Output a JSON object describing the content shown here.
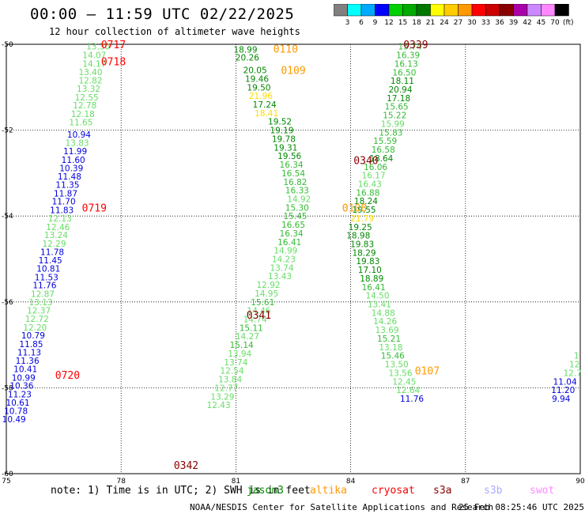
{
  "header": {
    "title": "00:00 – 11:59 UTC 02/22/2025",
    "subtitle": "12 hour collection of altimeter wave heights"
  },
  "colorbar": {
    "unit": "(ft)",
    "ticks": [
      "3",
      "6",
      "9",
      "12",
      "15",
      "18",
      "21",
      "24",
      "27",
      "30",
      "33",
      "36",
      "39",
      "42",
      "45",
      "70"
    ],
    "colors": [
      "#808080",
      "#00ffff",
      "#00aaff",
      "#0000ff",
      "#00d000",
      "#00aa00",
      "#007700",
      "#ffff00",
      "#ffcc00",
      "#ff9900",
      "#ff0000",
      "#cc0000",
      "#880000",
      "#aa00aa",
      "#cc88ff",
      "#ff88ff",
      "#000000"
    ]
  },
  "footer": {
    "note": "note: 1) Time is in UTC; 2) SWH is in feet",
    "satellites": [
      {
        "label": "jason3",
        "color": "#008800"
      },
      {
        "label": "altika",
        "color": "#ff9900"
      },
      {
        "label": "cryosat",
        "color": "#ff0000"
      },
      {
        "label": "s3a",
        "color": "#880000"
      },
      {
        "label": "s3b",
        "color": "#aaaaff"
      },
      {
        "label": "swot",
        "color": "#ff88ff"
      }
    ],
    "credit": "NOAA/NESDIS Center for Satellite Applications and Research",
    "timestamp": "25 Feb 08:25:46 UTC 2025"
  },
  "chart_data": {
    "type": "scatter",
    "title": "00:00 – 11:59 UTC 02/22/2025",
    "xlabel": "",
    "ylabel": "",
    "xlim": [
      75,
      90
    ],
    "ylim": [
      -60,
      -50
    ],
    "xticks": [
      "75",
      "78",
      "81",
      "84",
      "87",
      "90"
    ],
    "yticks": [
      "-50",
      "-52",
      "-54",
      "-56",
      "-58",
      "-60"
    ],
    "grid": true,
    "tracks": [
      {
        "x": 77.8,
        "y": -50.0,
        "label": "0717",
        "color": "#ff0000"
      },
      {
        "x": 77.8,
        "y": -50.4,
        "label": "0718",
        "color": "#ff0000"
      },
      {
        "x": 77.3,
        "y": -53.8,
        "label": "0719",
        "color": "#ff0000"
      },
      {
        "x": 76.6,
        "y": -57.7,
        "label": "0720",
        "color": "#ff0000"
      },
      {
        "x": 82.3,
        "y": -50.1,
        "label": "0110",
        "color": "#ff9900"
      },
      {
        "x": 82.5,
        "y": -50.6,
        "label": "0109",
        "color": "#ff9900"
      },
      {
        "x": 84.1,
        "y": -53.8,
        "label": "0108",
        "color": "#ff9900"
      },
      {
        "x": 86.0,
        "y": -57.6,
        "label": "0107",
        "color": "#ff9900"
      },
      {
        "x": 85.7,
        "y": -50.0,
        "label": "0339",
        "color": "#880000"
      },
      {
        "x": 84.4,
        "y": -52.7,
        "label": "0340",
        "color": "#880000"
      },
      {
        "x": 81.6,
        "y": -56.3,
        "label": "0341",
        "color": "#880000"
      },
      {
        "x": 79.7,
        "y": -59.8,
        "label": "0342",
        "color": "#880000"
      }
    ],
    "points": [
      {
        "x": 77.4,
        "y": -50.05,
        "v": "13.30",
        "c": "#66dd66"
      },
      {
        "x": 77.3,
        "y": -50.25,
        "v": "14.07",
        "c": "#66dd66"
      },
      {
        "x": 77.3,
        "y": -50.45,
        "v": "14.17",
        "c": "#66dd66"
      },
      {
        "x": 77.2,
        "y": -50.64,
        "v": "13.40",
        "c": "#66dd66"
      },
      {
        "x": 77.2,
        "y": -50.84,
        "v": "12.82",
        "c": "#66dd66"
      },
      {
        "x": 77.15,
        "y": -51.03,
        "v": "13.32",
        "c": "#66dd66"
      },
      {
        "x": 77.1,
        "y": -51.23,
        "v": "12.55",
        "c": "#66dd66"
      },
      {
        "x": 77.05,
        "y": -51.42,
        "v": "12.78",
        "c": "#66dd66"
      },
      {
        "x": 77.0,
        "y": -51.62,
        "v": "12.18",
        "c": "#66dd66"
      },
      {
        "x": 76.95,
        "y": -51.81,
        "v": "11.65",
        "c": "#66dd66"
      },
      {
        "x": 76.9,
        "y": -52.1,
        "v": "10.94",
        "c": "#0000dd"
      },
      {
        "x": 76.85,
        "y": -52.29,
        "v": "13.83",
        "c": "#66dd66"
      },
      {
        "x": 76.8,
        "y": -52.49,
        "v": "11.99",
        "c": "#0000dd"
      },
      {
        "x": 76.75,
        "y": -52.69,
        "v": "11.60",
        "c": "#0000dd"
      },
      {
        "x": 76.7,
        "y": -52.88,
        "v": "10.39",
        "c": "#0000dd"
      },
      {
        "x": 76.65,
        "y": -53.08,
        "v": "11.48",
        "c": "#0000dd"
      },
      {
        "x": 76.6,
        "y": -53.27,
        "v": "11.35",
        "c": "#0000dd"
      },
      {
        "x": 76.55,
        "y": -53.47,
        "v": "11.87",
        "c": "#0000dd"
      },
      {
        "x": 76.5,
        "y": -53.66,
        "v": "11.70",
        "c": "#0000dd"
      },
      {
        "x": 76.45,
        "y": -53.86,
        "v": "11.83",
        "c": "#0000dd"
      },
      {
        "x": 76.4,
        "y": -54.05,
        "v": "12.13",
        "c": "#66dd66"
      },
      {
        "x": 76.35,
        "y": -54.25,
        "v": "12.46",
        "c": "#66dd66"
      },
      {
        "x": 76.3,
        "y": -54.44,
        "v": "13.24",
        "c": "#66dd66"
      },
      {
        "x": 76.25,
        "y": -54.64,
        "v": "12.29",
        "c": "#66dd66"
      },
      {
        "x": 76.2,
        "y": -54.83,
        "v": "11.78",
        "c": "#0000dd"
      },
      {
        "x": 76.15,
        "y": -55.03,
        "v": "11.45",
        "c": "#0000dd"
      },
      {
        "x": 76.1,
        "y": -55.22,
        "v": "10.81",
        "c": "#0000dd"
      },
      {
        "x": 76.05,
        "y": -55.42,
        "v": "11.53",
        "c": "#0000dd"
      },
      {
        "x": 76.0,
        "y": -55.61,
        "v": "11.76",
        "c": "#0000dd"
      },
      {
        "x": 75.95,
        "y": -55.81,
        "v": "12.87",
        "c": "#66dd66"
      },
      {
        "x": 75.9,
        "y": -56.0,
        "v": "13.13",
        "c": "#66dd66"
      },
      {
        "x": 75.85,
        "y": -56.2,
        "v": "12.37",
        "c": "#66dd66"
      },
      {
        "x": 75.8,
        "y": -56.39,
        "v": "12.72",
        "c": "#66dd66"
      },
      {
        "x": 75.75,
        "y": -56.59,
        "v": "12.20",
        "c": "#66dd66"
      },
      {
        "x": 75.7,
        "y": -56.78,
        "v": "10.79",
        "c": "#0000dd"
      },
      {
        "x": 75.65,
        "y": -56.98,
        "v": "11.85",
        "c": "#0000dd"
      },
      {
        "x": 75.6,
        "y": -57.17,
        "v": "11.13",
        "c": "#0000dd"
      },
      {
        "x": 75.55,
        "y": -57.37,
        "v": "11.36",
        "c": "#0000dd"
      },
      {
        "x": 75.5,
        "y": -57.56,
        "v": "10.41",
        "c": "#0000dd"
      },
      {
        "x": 75.45,
        "y": -57.76,
        "v": "10.99",
        "c": "#0000dd"
      },
      {
        "x": 75.4,
        "y": -57.95,
        "v": "10.36",
        "c": "#0000dd"
      },
      {
        "x": 75.35,
        "y": -58.15,
        "v": "11.23",
        "c": "#0000dd"
      },
      {
        "x": 75.3,
        "y": -58.34,
        "v": "10.61",
        "c": "#0000dd"
      },
      {
        "x": 75.25,
        "y": -58.54,
        "v": "10.78",
        "c": "#0000dd"
      },
      {
        "x": 75.2,
        "y": -58.73,
        "v": "10.49",
        "c": "#0000dd"
      },
      {
        "x": 81.25,
        "y": -50.12,
        "v": "18.99",
        "c": "#008800"
      },
      {
        "x": 81.3,
        "y": -50.3,
        "v": "20.26",
        "c": "#008800"
      },
      {
        "x": 81.5,
        "y": -50.6,
        "v": "20.05",
        "c": "#008800"
      },
      {
        "x": 81.55,
        "y": -50.8,
        "v": "19.46",
        "c": "#008800"
      },
      {
        "x": 81.6,
        "y": -51.0,
        "v": "19.50",
        "c": "#008800"
      },
      {
        "x": 81.65,
        "y": -51.2,
        "v": "21.96",
        "c": "#ffdd00"
      },
      {
        "x": 81.75,
        "y": -51.4,
        "v": "17.24",
        "c": "#008800"
      },
      {
        "x": 81.8,
        "y": -51.6,
        "v": "18.41",
        "c": "#ffdd00"
      },
      {
        "x": 82.15,
        "y": -51.8,
        "v": "19.52",
        "c": "#008800"
      },
      {
        "x": 82.2,
        "y": -52.0,
        "v": "19.19",
        "c": "#008800"
      },
      {
        "x": 82.25,
        "y": -52.2,
        "v": "19.78",
        "c": "#008800"
      },
      {
        "x": 82.3,
        "y": -52.4,
        "v": "19.31",
        "c": "#008800"
      },
      {
        "x": 82.4,
        "y": -52.6,
        "v": "19.56",
        "c": "#008800"
      },
      {
        "x": 82.45,
        "y": -52.8,
        "v": "16.34",
        "c": "#33bb33"
      },
      {
        "x": 82.5,
        "y": -53.0,
        "v": "16.54",
        "c": "#33bb33"
      },
      {
        "x": 82.55,
        "y": -53.2,
        "v": "16.82",
        "c": "#33bb33"
      },
      {
        "x": 82.6,
        "y": -53.4,
        "v": "16.33",
        "c": "#33bb33"
      },
      {
        "x": 82.65,
        "y": -53.6,
        "v": "14.92",
        "c": "#66dd66"
      },
      {
        "x": 82.6,
        "y": -53.8,
        "v": "15.30",
        "c": "#33bb33"
      },
      {
        "x": 82.55,
        "y": -54.0,
        "v": "15.45",
        "c": "#33bb33"
      },
      {
        "x": 82.5,
        "y": -54.2,
        "v": "16.65",
        "c": "#33bb33"
      },
      {
        "x": 82.45,
        "y": -54.4,
        "v": "16.34",
        "c": "#33bb33"
      },
      {
        "x": 82.4,
        "y": -54.6,
        "v": "16.41",
        "c": "#33bb33"
      },
      {
        "x": 82.3,
        "y": -54.8,
        "v": "14.99",
        "c": "#66dd66"
      },
      {
        "x": 82.25,
        "y": -55.0,
        "v": "14.23",
        "c": "#66dd66"
      },
      {
        "x": 82.2,
        "y": -55.2,
        "v": "13.74",
        "c": "#66dd66"
      },
      {
        "x": 82.15,
        "y": -55.4,
        "v": "13.43",
        "c": "#66dd66"
      },
      {
        "x": 81.85,
        "y": -55.6,
        "v": "12.92",
        "c": "#66dd66"
      },
      {
        "x": 81.8,
        "y": -55.8,
        "v": "14.95",
        "c": "#66dd66"
      },
      {
        "x": 81.7,
        "y": -56.0,
        "v": "15.61",
        "c": "#33bb33"
      },
      {
        "x": 81.6,
        "y": -56.2,
        "v": "14.46",
        "c": "#66dd66"
      },
      {
        "x": 81.5,
        "y": -56.4,
        "v": "14.74",
        "c": "#66dd66"
      },
      {
        "x": 81.4,
        "y": -56.6,
        "v": "15.11",
        "c": "#33bb33"
      },
      {
        "x": 81.3,
        "y": -56.8,
        "v": "14.27",
        "c": "#66dd66"
      },
      {
        "x": 81.15,
        "y": -57.0,
        "v": "15.14",
        "c": "#33bb33"
      },
      {
        "x": 81.1,
        "y": -57.2,
        "v": "13.94",
        "c": "#66dd66"
      },
      {
        "x": 81.0,
        "y": -57.4,
        "v": "13.74",
        "c": "#66dd66"
      },
      {
        "x": 80.9,
        "y": -57.6,
        "v": "12.54",
        "c": "#66dd66"
      },
      {
        "x": 80.85,
        "y": -57.8,
        "v": "13.84",
        "c": "#66dd66"
      },
      {
        "x": 80.75,
        "y": -58.0,
        "v": "12.77",
        "c": "#66dd66"
      },
      {
        "x": 80.65,
        "y": -58.2,
        "v": "13.29",
        "c": "#66dd66"
      },
      {
        "x": 80.55,
        "y": -58.4,
        "v": "12.43",
        "c": "#66dd66"
      },
      {
        "x": 85.55,
        "y": -50.05,
        "v": "15.74",
        "c": "#33bb33"
      },
      {
        "x": 85.5,
        "y": -50.25,
        "v": "16.39",
        "c": "#33bb33"
      },
      {
        "x": 85.45,
        "y": -50.45,
        "v": "16.13",
        "c": "#33bb33"
      },
      {
        "x": 85.4,
        "y": -50.65,
        "v": "16.50",
        "c": "#33bb33"
      },
      {
        "x": 85.35,
        "y": -50.85,
        "v": "18.11",
        "c": "#008800"
      },
      {
        "x": 85.3,
        "y": -51.05,
        "v": "20.94",
        "c": "#008800"
      },
      {
        "x": 85.25,
        "y": -51.25,
        "v": "17.18",
        "c": "#008800"
      },
      {
        "x": 85.2,
        "y": -51.45,
        "v": "15.65",
        "c": "#33bb33"
      },
      {
        "x": 85.15,
        "y": -51.65,
        "v": "15.22",
        "c": "#33bb33"
      },
      {
        "x": 85.1,
        "y": -51.85,
        "v": "15.99",
        "c": "#66dd66"
      },
      {
        "x": 85.05,
        "y": -52.05,
        "v": "15.83",
        "c": "#33bb33"
      },
      {
        "x": 84.9,
        "y": -52.25,
        "v": "15.59",
        "c": "#33bb33"
      },
      {
        "x": 84.85,
        "y": -52.45,
        "v": "16.58",
        "c": "#33bb33"
      },
      {
        "x": 84.8,
        "y": -52.65,
        "v": "18.64",
        "c": "#008800"
      },
      {
        "x": 84.65,
        "y": -52.85,
        "v": "16.06",
        "c": "#33bb33"
      },
      {
        "x": 84.6,
        "y": -53.05,
        "v": "16.17",
        "c": "#66dd66"
      },
      {
        "x": 84.5,
        "y": -53.25,
        "v": "16.43",
        "c": "#66dd66"
      },
      {
        "x": 84.45,
        "y": -53.45,
        "v": "16.88",
        "c": "#33bb33"
      },
      {
        "x": 84.4,
        "y": -53.65,
        "v": "18.24",
        "c": "#008800"
      },
      {
        "x": 84.35,
        "y": -53.85,
        "v": "19.55",
        "c": "#008800"
      },
      {
        "x": 84.3,
        "y": -54.05,
        "v": "21.79",
        "c": "#ffdd00"
      },
      {
        "x": 84.25,
        "y": -54.25,
        "v": "19.25",
        "c": "#008800"
      },
      {
        "x": 84.2,
        "y": -54.45,
        "v": "18.98",
        "c": "#008800"
      },
      {
        "x": 84.3,
        "y": -54.65,
        "v": "19.83",
        "c": "#008800"
      },
      {
        "x": 84.35,
        "y": -54.85,
        "v": "18.29",
        "c": "#008800"
      },
      {
        "x": 84.45,
        "y": -55.05,
        "v": "19.83",
        "c": "#008800"
      },
      {
        "x": 84.5,
        "y": -55.25,
        "v": "17.10",
        "c": "#008800"
      },
      {
        "x": 84.55,
        "y": -55.45,
        "v": "18.89",
        "c": "#008800"
      },
      {
        "x": 84.6,
        "y": -55.65,
        "v": "16.41",
        "c": "#33bb33"
      },
      {
        "x": 84.7,
        "y": -55.85,
        "v": "14.50",
        "c": "#66dd66"
      },
      {
        "x": 84.75,
        "y": -56.05,
        "v": "13.41",
        "c": "#66dd66"
      },
      {
        "x": 84.85,
        "y": -56.25,
        "v": "14.88",
        "c": "#66dd66"
      },
      {
        "x": 84.9,
        "y": -56.45,
        "v": "14.26",
        "c": "#66dd66"
      },
      {
        "x": 84.95,
        "y": -56.65,
        "v": "13.69",
        "c": "#66dd66"
      },
      {
        "x": 85.0,
        "y": -56.85,
        "v": "15.21",
        "c": "#33bb33"
      },
      {
        "x": 85.05,
        "y": -57.05,
        "v": "13.18",
        "c": "#66dd66"
      },
      {
        "x": 85.1,
        "y": -57.25,
        "v": "15.46",
        "c": "#33bb33"
      },
      {
        "x": 85.2,
        "y": -57.45,
        "v": "13.50",
        "c": "#66dd66"
      },
      {
        "x": 85.3,
        "y": -57.65,
        "v": "13.56",
        "c": "#66dd66"
      },
      {
        "x": 85.4,
        "y": -57.85,
        "v": "12.45",
        "c": "#66dd66"
      },
      {
        "x": 85.5,
        "y": -58.05,
        "v": "12.64",
        "c": "#66dd66"
      },
      {
        "x": 85.6,
        "y": -58.25,
        "v": "11.76",
        "c": "#0000dd"
      },
      {
        "x": 89.6,
        "y": -57.85,
        "v": "11.04",
        "c": "#0000dd"
      },
      {
        "x": 89.55,
        "y": -58.05,
        "v": "11.20",
        "c": "#0000dd"
      },
      {
        "x": 89.5,
        "y": -58.25,
        "v": "9.94",
        "c": "#0000dd"
      },
      {
        "x": 89.9,
        "y": -57.25,
        "v": "1",
        "c": "#66dd66"
      },
      {
        "x": 89.85,
        "y": -57.45,
        "v": "12",
        "c": "#66dd66"
      },
      {
        "x": 89.8,
        "y": -57.65,
        "v": "12.7",
        "c": "#66dd66"
      }
    ]
  }
}
